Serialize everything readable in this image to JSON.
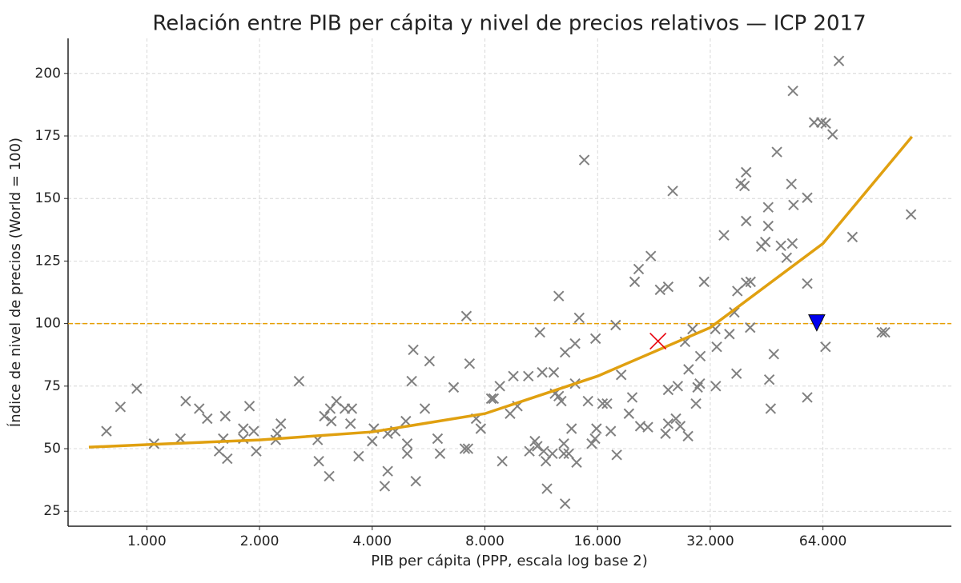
{
  "chart_data": {
    "type": "scatter",
    "title": "Relación entre PIB per cápita y nivel de precios relativos — ICP 2017",
    "xlabel": "PIB per cápita (PPP, escala log base 2)",
    "ylabel": "Índice de nivel de precios (World = 100)",
    "xscale": "log2",
    "xlim": [
      616,
      141000
    ],
    "ylim": [
      19,
      214
    ],
    "xticks": [
      {
        "value": 1000,
        "label": "1.000"
      },
      {
        "value": 2000,
        "label": "2.000"
      },
      {
        "value": 4000,
        "label": "4.000"
      },
      {
        "value": 8000,
        "label": "8.000"
      },
      {
        "value": 16000,
        "label": "16.000"
      },
      {
        "value": 32000,
        "label": "32.000"
      },
      {
        "value": 64000,
        "label": "64.000"
      }
    ],
    "yticks": [
      25,
      50,
      75,
      100,
      125,
      150,
      175,
      200
    ],
    "grid": true,
    "hline": {
      "value": 100,
      "color": "#e69f00"
    },
    "series": [
      {
        "type": "scatter",
        "marker": "x",
        "color": "#808080",
        "x": [
          780,
          850,
          940,
          1045,
          1230,
          1270,
          1380,
          1450,
          1560,
          1620,
          1640,
          1600,
          1810,
          1810,
          1880,
          1930,
          1960,
          2210,
          2280,
          2230,
          2550,
          2860,
          2880,
          2980,
          3070,
          3090,
          3210,
          3110,
          3380,
          3530,
          3500,
          3680,
          4000,
          4040,
          4400,
          4320,
          4400,
          4610,
          4960,
          4920,
          4960,
          5100,
          5150,
          5230,
          5530,
          5690,
          5980,
          6070,
          6600,
          7140,
          7070,
          7280,
          7210,
          7580,
          7800,
          8320,
          8440,
          8770,
          8900,
          9340,
          9530,
          9770,
          10450,
          10520,
          10880,
          11040,
          11220,
          11490,
          11380,
          11640,
          11720,
          12120,
          12220,
          12310,
          12600,
          12800,
          12600,
          13000,
          13000,
          13100,
          13100,
          13400,
          13630,
          13930,
          14060,
          13930,
          14290,
          14740,
          15080,
          15440,
          15750,
          15800,
          15890,
          16500,
          16950,
          17350,
          17880,
          18000,
          18500,
          19400,
          19800,
          20100,
          20600,
          20800,
          21800,
          22200,
          23500,
          24700,
          24300,
          24700,
          24700,
          25400,
          25900,
          26200,
          26600,
          27400,
          27900,
          28000,
          28700,
          29300,
          29600,
          30000,
          30100,
          30800,
          33000,
          33100,
          33300,
          34800,
          36000,
          37100,
          37600,
          37800,
          38600,
          39500,
          39900,
          39900,
          39900,
          40900,
          41000,
          43800,
          44900,
          45700,
          45700,
          46000,
          46400,
          47300,
          48200,
          49400,
          51200,
          52700,
          53000,
          53400,
          53200,
          58100,
          58100,
          58100,
          60600,
          63400,
          65100,
          67900,
          65000,
          70600,
          76700,
          91900,
          93700,
          110000
        ],
        "values": [
          57,
          66.7,
          74,
          52,
          54,
          69,
          66,
          62,
          49,
          63,
          46,
          54,
          54,
          58,
          67,
          57,
          49,
          53.5,
          60,
          56,
          77,
          53.5,
          45,
          63,
          39,
          66,
          69,
          61,
          66,
          66,
          60,
          47,
          53,
          58,
          56,
          35,
          41,
          57,
          52,
          61,
          48,
          77,
          89.5,
          37,
          66,
          85,
          54,
          48,
          74.5,
          103,
          50,
          84,
          50,
          62,
          58,
          70,
          70,
          75,
          45,
          64,
          79,
          67,
          79,
          49,
          53,
          51,
          96.5,
          49,
          80.5,
          45,
          34,
          48,
          80.5,
          72,
          111,
          69,
          71,
          48,
          52,
          28,
          88.5,
          48,
          58,
          92,
          44.5,
          76,
          102.3,
          165.4,
          69,
          52,
          54,
          94,
          58,
          68,
          68,
          57,
          99.4,
          47.5,
          79.5,
          64,
          70.5,
          116.7,
          121.8,
          59,
          58.6,
          127,
          113.5,
          114.7,
          56,
          73.5,
          60,
          153,
          62,
          75,
          59,
          92.7,
          55,
          81.7,
          97.8,
          68,
          74.5,
          76,
          87,
          116.7,
          97.8,
          75,
          90.7,
          135.3,
          95.8,
          104.5,
          80,
          113,
          156,
          155,
          160.5,
          141,
          116.3,
          98.4,
          116.7,
          130.8,
          132.6,
          146.5,
          139,
          77.6,
          66,
          87.8,
          168.6,
          131.1,
          126.3,
          155.8,
          132,
          147.4,
          193,
          70.5,
          116,
          150.3,
          180.4,
          180.4,
          180,
          175.6,
          90.7,
          205,
          134.6,
          96.5,
          96.5,
          143.6
        ]
      },
      {
        "type": "line",
        "color": "#e0a010",
        "x": [
          700,
          1000,
          2000,
          4000,
          8000,
          16000,
          32000,
          64000,
          110600
        ],
        "values": [
          50.6,
          51.6,
          53.5,
          56.7,
          64,
          79,
          98.4,
          132,
          174.7
        ]
      },
      {
        "type": "scatter",
        "marker": "x-large",
        "color": "#e8000b",
        "x": [
          23200
        ],
        "values": [
          93
        ]
      },
      {
        "type": "scatter",
        "marker": "triangle-down",
        "color": "#0000ee",
        "x": [
          61600
        ],
        "values": [
          100.3
        ]
      }
    ]
  }
}
